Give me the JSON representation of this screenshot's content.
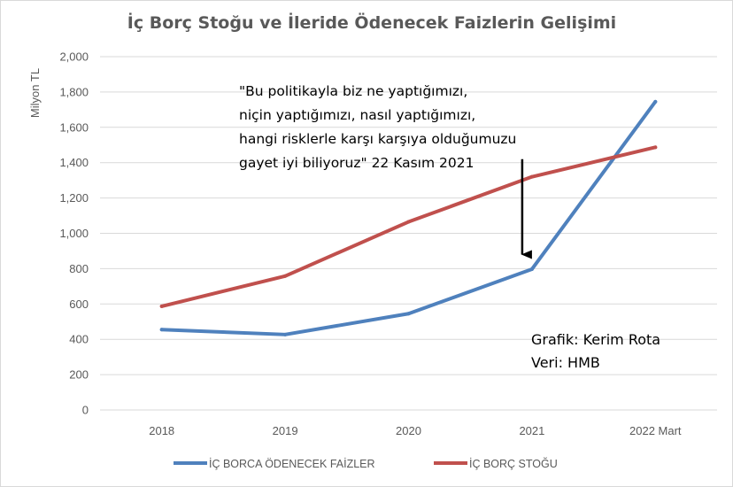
{
  "chart_data": {
    "type": "line",
    "title": "İç Borç Stoğu ve İleride Ödenecek Faizlerin Gelişimi",
    "ylabel": "Milyon TL",
    "xlabel": "",
    "categories": [
      "2018",
      "2019",
      "2020",
      "2021",
      "2022 Mart"
    ],
    "ylim": [
      0,
      2000
    ],
    "yticks": [
      0,
      200,
      400,
      600,
      800,
      1000,
      1200,
      1400,
      1600,
      1800,
      2000
    ],
    "ytick_labels": [
      "0",
      "200",
      "400",
      "600",
      "800",
      "1,000",
      "1,200",
      "1,400",
      "1,600",
      "1,800",
      "2,000"
    ],
    "grid": true,
    "legend_position": "bottom",
    "series": [
      {
        "name": "İÇ BORCA ÖDENECEK FAİZLER",
        "color": "#4f81bd",
        "values": [
          455,
          427,
          545,
          797,
          1745
        ]
      },
      {
        "name": "İÇ BORÇ STOĞU",
        "color": "#c0504d",
        "values": [
          587,
          758,
          1065,
          1320,
          1487
        ]
      }
    ],
    "annotation": {
      "lines": [
        "\"Bu politikayla biz ne yaptığımızı,",
        "niçin yaptığımızı, nasıl yaptığımızı,",
        "hangi risklerle karşı karşıya olduğumuzu",
        "gayet iyi biliyoruz\"  22 Kasım 2021"
      ],
      "arrow_target": {
        "category": "2021",
        "y_from": 1420,
        "y_to": 880
      }
    },
    "credits": [
      "Grafik: Kerim Rota",
      "Veri: HMB"
    ]
  }
}
